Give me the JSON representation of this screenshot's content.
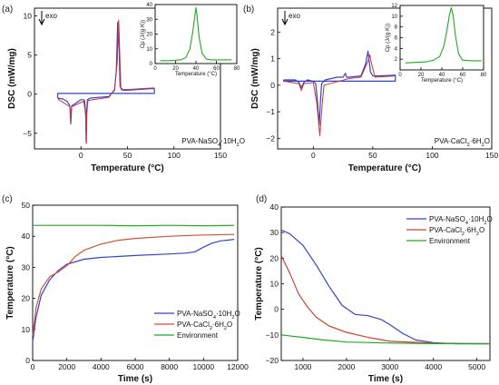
{
  "chart_data": [
    {
      "panel": "(a)",
      "type": "line",
      "xlabel": "Temperature (°C)",
      "ylabel": "DSC (mW/mg)",
      "xlim": [
        -50,
        150
      ],
      "ylim": [
        -7,
        11
      ],
      "xticks": [
        0,
        50,
        100,
        150
      ],
      "yticks": [
        -5,
        0,
        5,
        10
      ],
      "direction_label": "exo",
      "sample_label": "PVA-NaSO4·10H2O",
      "series": [
        {
          "color": "#3344cc",
          "x": [
            -25,
            -20,
            -15,
            -12,
            -11,
            -10,
            0,
            3,
            4,
            5,
            5.6,
            6,
            7,
            10,
            30,
            36,
            38,
            39.5,
            41,
            42,
            45,
            50,
            60,
            75,
            79,
            79,
            75,
            60,
            10,
            5,
            0,
            -25,
            -25,
            -25
          ],
          "y": [
            -0.5,
            -0.6,
            -0.9,
            -1.5,
            -3.8,
            -1.5,
            -0.7,
            -0.7,
            -0.9,
            -2.5,
            -6.2,
            -2.3,
            -0.7,
            -0.5,
            -0.3,
            0.5,
            3,
            9.2,
            6,
            1,
            0.5,
            0.5,
            0.6,
            0.7,
            0.7,
            0.1,
            0.1,
            0.1,
            0.1,
            0.1,
            0.1,
            0.1,
            -0.5,
            -0.5
          ]
        },
        {
          "color": "#cc3333",
          "x": [
            -25,
            -12,
            -11,
            -10,
            3,
            5,
            5.8,
            6.4,
            7.5,
            30,
            36,
            39,
            40.5,
            41.5,
            43,
            50,
            79
          ],
          "y": [
            -0.6,
            -1.6,
            -3.3,
            -1.6,
            -0.9,
            -2.6,
            -6.3,
            -2.4,
            -0.8,
            -0.4,
            0.6,
            4,
            9.5,
            6,
            0.6,
            0.6,
            0.8
          ]
        }
      ],
      "inset": {
        "xlabel": "Temperature (°C)",
        "ylabel": "Cp (J/(g·K))",
        "xlim": [
          0,
          80
        ],
        "ylim": [
          0,
          40
        ],
        "xticks": [
          0,
          20,
          40,
          60,
          80
        ],
        "yticks": [
          0,
          10,
          20,
          30,
          40
        ],
        "series": [
          {
            "color": "#22aa22",
            "x": [
              5,
              15,
              25,
              30,
              34,
              37,
              39,
              40,
              41,
              43,
              46,
              50,
              55,
              65,
              75
            ],
            "y": [
              2,
              2,
              2.5,
              4,
              10,
              22,
              33,
              38,
              33,
              18,
              7,
              3,
              2.5,
              2.5,
              2.5
            ]
          }
        ]
      }
    },
    {
      "panel": "(b)",
      "type": "line",
      "xlabel": "Temperature (°C)",
      "ylabel": "DSC (mW/mg)",
      "xlim": [
        -30,
        150
      ],
      "ylim": [
        -2.4,
        2.9
      ],
      "xticks": [
        0,
        50,
        100,
        150
      ],
      "yticks": [
        -2,
        -1,
        0,
        1,
        2
      ],
      "direction_label": "exo",
      "sample_label": "PVA-CaCl2·6H2O",
      "series": [
        {
          "color": "#3344cc",
          "x": [
            -25,
            -15,
            -12,
            -10,
            -8,
            -5,
            0,
            2,
            3.5,
            5,
            6,
            7,
            10,
            20,
            25,
            27,
            28,
            30,
            40,
            44,
            46,
            47,
            48,
            50,
            55,
            69,
            69,
            60,
            20,
            0,
            -25,
            -25,
            -25
          ],
          "y": [
            0.2,
            0.2,
            0.1,
            -0.1,
            0.1,
            0.2,
            0.15,
            0.05,
            -0.6,
            -1.5,
            -0.6,
            0.05,
            0.2,
            0.3,
            0.3,
            0.45,
            0.3,
            0.3,
            0.35,
            0.8,
            1.28,
            0.9,
            0.5,
            0.35,
            0.35,
            0.38,
            0.15,
            0.15,
            0.15,
            0.15,
            0.15,
            0.15,
            0.2
          ]
        },
        {
          "color": "#cc3333",
          "x": [
            -25,
            -12,
            -10,
            -8,
            0,
            3,
            5.5,
            7.5,
            9,
            30,
            40,
            46,
            47.5,
            49,
            52,
            69
          ],
          "y": [
            0.15,
            0.05,
            -0.2,
            0.05,
            0.1,
            -0.7,
            -1.9,
            -0.7,
            0,
            0.25,
            0.3,
            0.9,
            1.15,
            0.8,
            0.3,
            0.35
          ]
        }
      ],
      "inset": {
        "xlabel": "Temperature (°C)",
        "ylabel": "Cp (J/(g·K))",
        "xlim": [
          0,
          80
        ],
        "ylim": [
          0,
          12
        ],
        "xticks": [
          0,
          20,
          40,
          60,
          80
        ],
        "yticks": [
          2,
          4,
          6,
          8,
          10,
          12
        ],
        "series": [
          {
            "color": "#22aa22",
            "x": [
              5,
              15,
              25,
              32,
              38,
              42,
              45,
              47,
              49,
              51,
              53,
              56,
              60,
              70,
              78
            ],
            "y": [
              1.3,
              1.4,
              1.5,
              1.8,
              2.5,
              4.5,
              7.5,
              10,
              11.6,
              10,
              6.5,
              3,
              1.8,
              1.7,
              1.7
            ]
          }
        ]
      }
    },
    {
      "panel": "(c)",
      "type": "line",
      "xlabel": "Time (s)",
      "ylabel": "Temperature (°C)",
      "xlim": [
        0,
        12000
      ],
      "ylim": [
        0,
        50
      ],
      "xticks": [
        0,
        2000,
        4000,
        6000,
        8000,
        10000,
        12000
      ],
      "yticks": [
        0,
        10,
        20,
        30,
        40,
        50
      ],
      "series": [
        {
          "name": "PVA-NaSO4·10H2O",
          "color": "#3344cc",
          "x": [
            0,
            200,
            500,
            1000,
            1500,
            2000,
            3000,
            4000,
            6000,
            8000,
            9000,
            9500,
            10000,
            10500,
            11000,
            11800
          ],
          "y": [
            6,
            14,
            21,
            26,
            29,
            31,
            32.6,
            33.2,
            33.8,
            34.3,
            34.6,
            35,
            36.5,
            37.8,
            38.5,
            39
          ]
        },
        {
          "name": "PVA-CaCl2·6H2O",
          "color": "#cc5533",
          "x": [
            0,
            200,
            500,
            1000,
            1500,
            2000,
            2500,
            3000,
            4000,
            5000,
            6000,
            8000,
            10000,
            11800
          ],
          "y": [
            8,
            17,
            23,
            27,
            28.5,
            30.5,
            33.5,
            35.5,
            37.5,
            38.7,
            39.3,
            40,
            40.4,
            40.6
          ]
        },
        {
          "name": "Environment",
          "color": "#22aa22",
          "x": [
            0,
            2000,
            4000,
            6000,
            8000,
            10000,
            11800
          ],
          "y": [
            43.5,
            43.5,
            43.5,
            43.4,
            43.5,
            43.4,
            43.5
          ]
        }
      ]
    },
    {
      "panel": "(d)",
      "type": "line",
      "xlabel": "Time (s)",
      "ylabel": "Temperature (°C)",
      "xlim": [
        500,
        5300
      ],
      "ylim": [
        -20,
        40
      ],
      "xticks": [
        1000,
        2000,
        3000,
        4000,
        5000
      ],
      "yticks": [
        -20,
        -10,
        0,
        10,
        20,
        30,
        40
      ],
      "series": [
        {
          "name": "PVA-NaSO4·10H2O",
          "color": "#3344cc",
          "x": [
            500,
            700,
            1000,
            1300,
            1600,
            1900,
            2200,
            2500,
            2800,
            3000,
            3300,
            3600,
            4000,
            4500,
            5300
          ],
          "y": [
            31,
            29.5,
            25,
            17.5,
            9,
            1.5,
            -2,
            -2.5,
            -4,
            -6,
            -9.5,
            -12,
            -13,
            -13.5,
            -13.5
          ]
        },
        {
          "name": "PVA-CaCl2·6H2O",
          "color": "#cc4433",
          "x": [
            500,
            700,
            900,
            1100,
            1300,
            1600,
            2000,
            2500,
            3000,
            4000,
            5300
          ],
          "y": [
            21,
            14,
            6,
            1,
            -3,
            -6.5,
            -9,
            -11,
            -12.5,
            -13.2,
            -13.5
          ]
        },
        {
          "name": "Environment",
          "color": "#22aa22",
          "x": [
            500,
            1000,
            1500,
            2000,
            3000,
            4000,
            5300
          ],
          "y": [
            -10,
            -11,
            -12,
            -12.8,
            -13.2,
            -13.4,
            -13.4
          ]
        }
      ]
    }
  ]
}
